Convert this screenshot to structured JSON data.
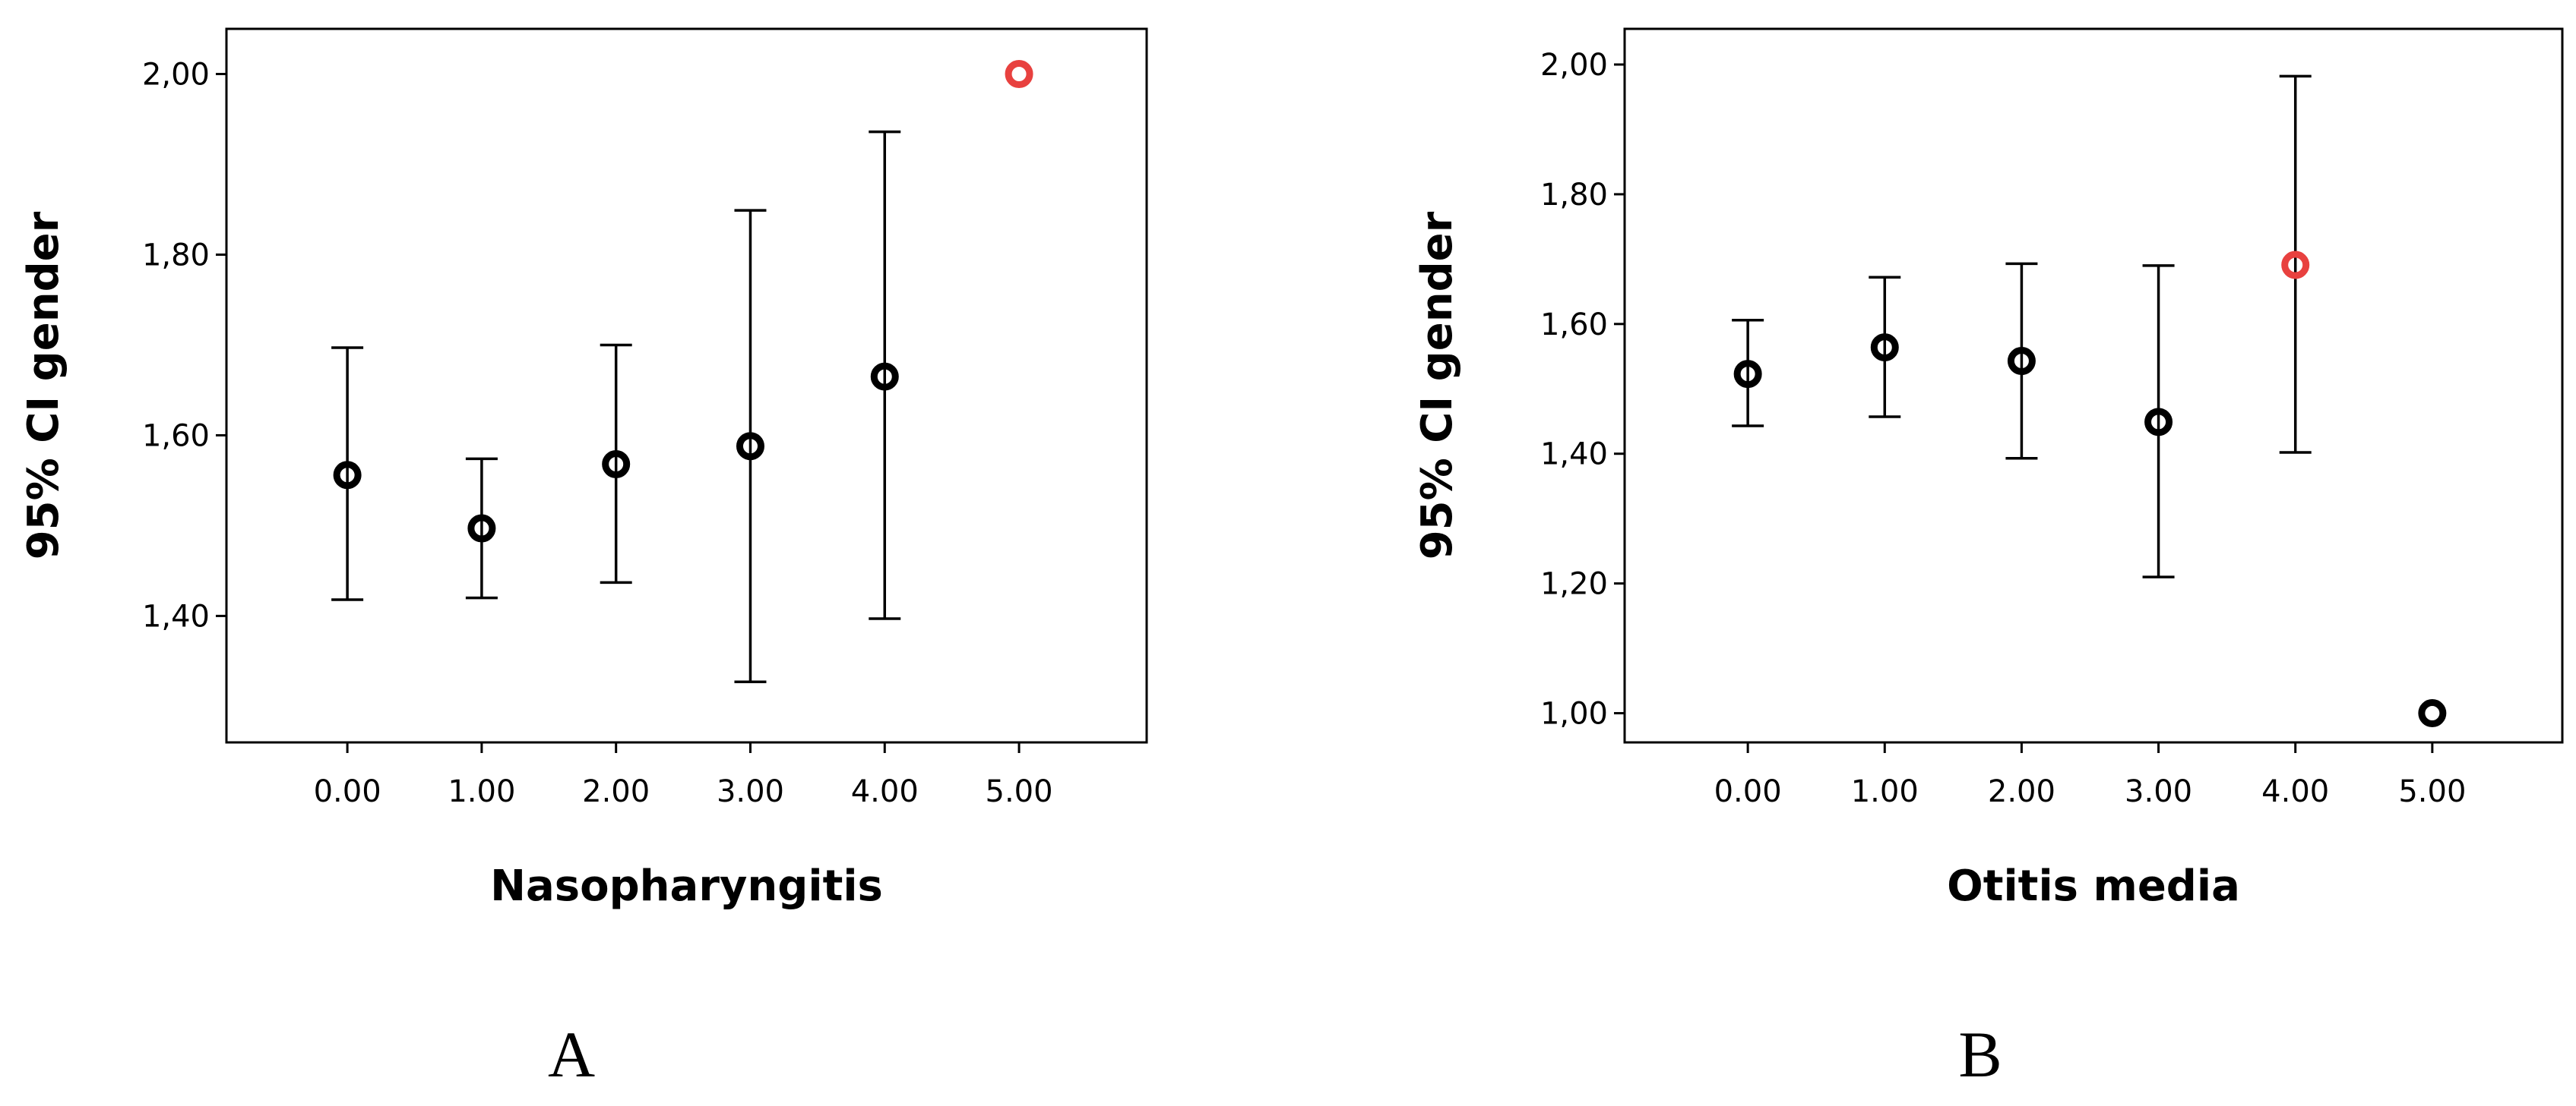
{
  "chart_data": [
    {
      "type": "scatter",
      "title": "",
      "panel_label": "A",
      "xlabel": "Nasopharyngitis",
      "ylabel": "95% CI gender",
      "x_ticks": [
        "0.00",
        "1.00",
        "2.00",
        "3.00",
        "4.00",
        "5.00"
      ],
      "y_ticks": [
        "1,40",
        "1,60",
        "1,80",
        "2,00"
      ],
      "xlim": [
        -0.9,
        5.95
      ],
      "ylim": [
        1.26,
        2.05
      ],
      "grid": false,
      "series": [
        {
          "x": [
            0,
            1,
            2,
            3,
            4,
            5
          ],
          "mean": [
            1.556,
            1.497,
            1.568,
            1.588,
            1.665,
            2.0
          ],
          "ci_low": [
            1.418,
            1.42,
            1.437,
            1.327,
            1.397,
            2.0
          ],
          "ci_high": [
            1.697,
            1.574,
            1.7,
            1.849,
            1.936,
            2.0
          ],
          "marker_colors": [
            "#000000",
            "#000000",
            "#000000",
            "#000000",
            "#000000",
            "#e8413f"
          ]
        }
      ]
    },
    {
      "type": "scatter",
      "title": "",
      "panel_label": "B",
      "xlabel": "Otitis media",
      "ylabel": "95% CI gender",
      "x_ticks": [
        "0.00",
        "1.00",
        "2.00",
        "3.00",
        "4.00",
        "5.00"
      ],
      "y_ticks": [
        "1,00",
        "1,20",
        "1,40",
        "1,60",
        "1,80",
        "2,00"
      ],
      "xlim": [
        -0.9,
        5.95
      ],
      "ylim": [
        0.955,
        2.055
      ],
      "grid": false,
      "series": [
        {
          "x": [
            0,
            1,
            2,
            3,
            4,
            5
          ],
          "mean": [
            1.523,
            1.564,
            1.543,
            1.449,
            1.691,
            1.0
          ],
          "ci_low": [
            1.443,
            1.457,
            1.393,
            1.21,
            1.402,
            1.0
          ],
          "ci_high": [
            1.606,
            1.672,
            1.693,
            1.69,
            1.982,
            1.0
          ],
          "marker_colors": [
            "#000000",
            "#000000",
            "#000000",
            "#000000",
            "#e8413f",
            "#000000"
          ]
        }
      ]
    }
  ]
}
